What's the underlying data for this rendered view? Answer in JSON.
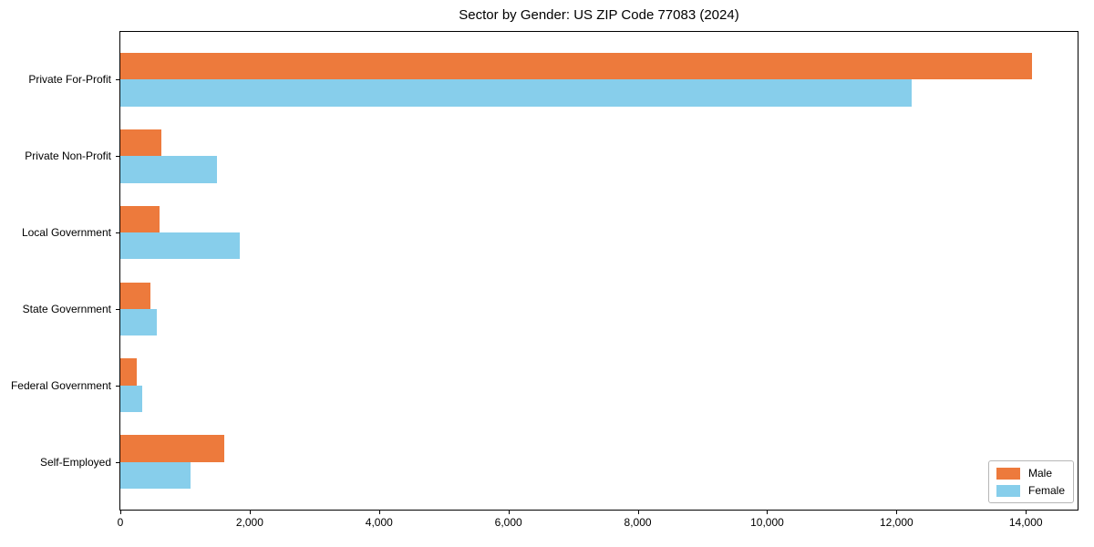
{
  "chart_data": {
    "type": "bar",
    "orientation": "horizontal",
    "title": "Sector by Gender: US ZIP Code 77083 (2024)",
    "xlabel": "",
    "ylabel": "",
    "categories": [
      "Private For-Profit",
      "Private Non-Profit",
      "Local Government",
      "State Government",
      "Federal Government",
      "Self-Employed"
    ],
    "series": [
      {
        "name": "Male",
        "color": "#ed7a3c",
        "values": [
          14100,
          640,
          610,
          460,
          250,
          1610
        ]
      },
      {
        "name": "Female",
        "color": "#87ceeb",
        "values": [
          12230,
          1490,
          1840,
          560,
          340,
          1080
        ]
      }
    ],
    "xlim": [
      0,
      14800
    ],
    "xticks": [
      0,
      2000,
      4000,
      6000,
      8000,
      10000,
      12000,
      14000
    ],
    "xtick_format": "comma",
    "legend_position": "lower right",
    "grid": false,
    "bar_fraction": 0.35,
    "colors": {
      "axis": "#000000",
      "legend_border": "#b7b7b7",
      "background": "#ffffff"
    }
  }
}
